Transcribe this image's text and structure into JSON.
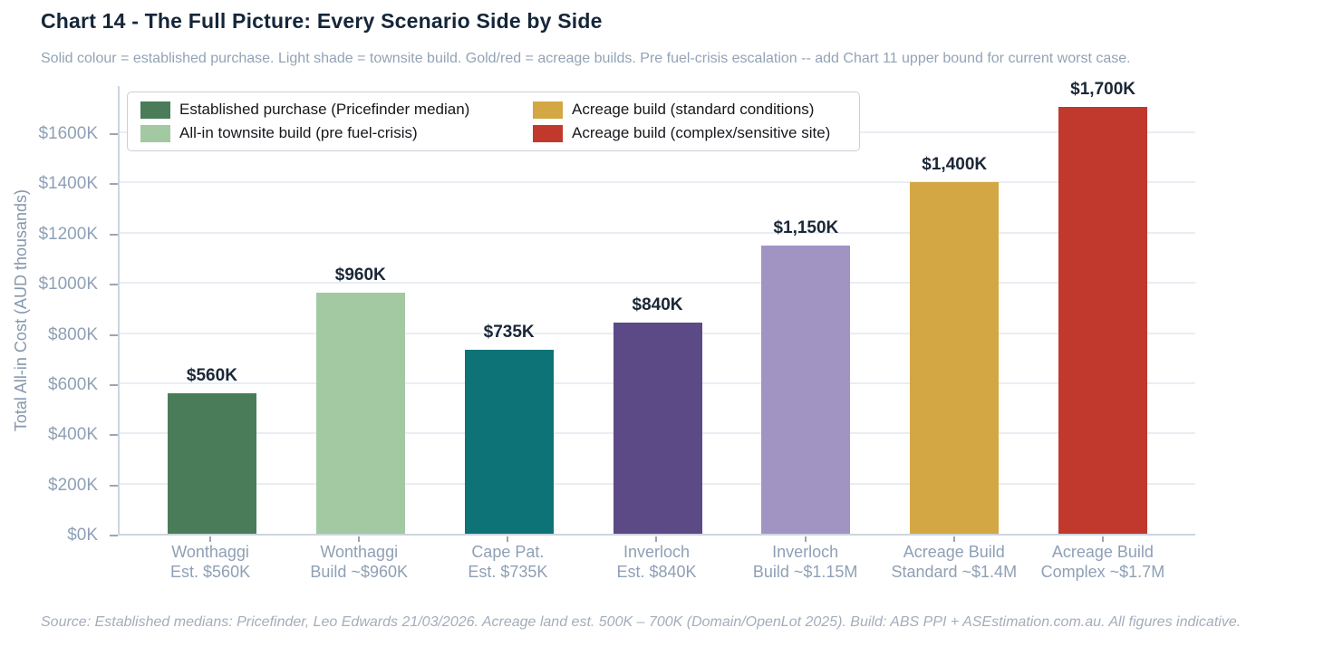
{
  "header": {
    "title": "Chart 14 - The Full Picture: Every Scenario Side by Side",
    "subtitle": "Solid colour = established purchase. Light shade = townsite build. Gold/red = acreage builds. Pre fuel-crisis escalation -- add Chart 11 upper bound for current worst case."
  },
  "legend": {
    "items": [
      {
        "label": "Established purchase (Pricefinder median)",
        "color": "#4a7c59"
      },
      {
        "label": "All-in townsite build (pre fuel-crisis)",
        "color": "#a3c9a3"
      },
      {
        "label": "Acreage build (standard conditions)",
        "color": "#d3a743"
      },
      {
        "label": "Acreage build (complex/sensitive site)",
        "color": "#c0392c"
      }
    ]
  },
  "chart_data": {
    "type": "bar",
    "title": "Chart 14 - The Full Picture: Every Scenario Side by Side",
    "xlabel": "",
    "ylabel": "Total All-in Cost (AUD thousands)",
    "ylim": [
      0,
      1790
    ],
    "grid": true,
    "legend_position": "upper left",
    "yticks": [
      {
        "value": 0,
        "label": "$0K"
      },
      {
        "value": 200,
        "label": "$200K"
      },
      {
        "value": 400,
        "label": "$400K"
      },
      {
        "value": 600,
        "label": "$600K"
      },
      {
        "value": 800,
        "label": "$800K"
      },
      {
        "value": 1000,
        "label": "$1000K"
      },
      {
        "value": 1200,
        "label": "$1200K"
      },
      {
        "value": 1400,
        "label": "$1400K"
      },
      {
        "value": 1600,
        "label": "$1600K"
      }
    ],
    "bars": [
      {
        "category_line1": "Wonthaggi",
        "category_line2": "Est. $560K",
        "value": 560,
        "value_label": "$560K",
        "color": "#4a7c59"
      },
      {
        "category_line1": "Wonthaggi",
        "category_line2": "Build ~$960K",
        "value": 960,
        "value_label": "$960K",
        "color": "#a3c9a3"
      },
      {
        "category_line1": "Cape Pat.",
        "category_line2": "Est. $735K",
        "value": 735,
        "value_label": "$735K",
        "color": "#0d7377"
      },
      {
        "category_line1": "Inverloch",
        "category_line2": "Est. $840K",
        "value": 840,
        "value_label": "$840K",
        "color": "#5c4a86"
      },
      {
        "category_line1": "Inverloch",
        "category_line2": "Build ~$1.15M",
        "value": 1150,
        "value_label": "$1,150K",
        "color": "#a194c2"
      },
      {
        "category_line1": "Acreage Build",
        "category_line2": "Standard ~$1.4M",
        "value": 1400,
        "value_label": "$1,400K",
        "color": "#d3a743"
      },
      {
        "category_line1": "Acreage Build",
        "category_line2": "Complex ~$1.7M",
        "value": 1700,
        "value_label": "$1,700K",
        "color": "#c0392c"
      }
    ]
  },
  "footer": {
    "source": "Source: Established medians: Pricefinder, Leo Edwards 21/03/2026. Acreage land est. 500K – 700K (Domain/OpenLot 2025). Build: ABS PPI + ASEstimation.com.au. All figures indicative."
  }
}
